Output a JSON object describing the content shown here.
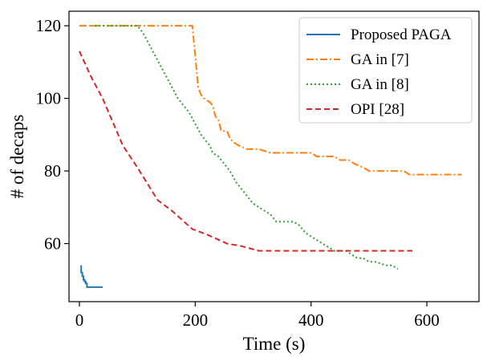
{
  "chart_data": {
    "type": "line",
    "title": "",
    "xlabel": "Time (s)",
    "ylabel": "# of decaps",
    "xlim": [
      -18,
      690
    ],
    "ylim": [
      44,
      124
    ],
    "xticks": [
      0,
      200,
      400,
      600
    ],
    "yticks": [
      60,
      80,
      100,
      120
    ],
    "grid": false,
    "legend_position": "top-right",
    "series": [
      {
        "name": "Proposed PAGA",
        "color": "#1f77b4",
        "style": "solid",
        "x": [
          3,
          3,
          5,
          5,
          7,
          7,
          9,
          9,
          11,
          11,
          13,
          13,
          40
        ],
        "y": [
          54,
          52,
          52,
          51,
          51,
          50,
          50,
          49.5,
          49.5,
          49,
          49,
          48,
          48
        ]
      },
      {
        "name": "GA in [7]",
        "color": "#ff7f0e",
        "style": "dashdot",
        "x": [
          0,
          195,
          200,
          205,
          210,
          215,
          225,
          230,
          235,
          240,
          245,
          255,
          260,
          265,
          275,
          290,
          310,
          330,
          345,
          400,
          410,
          440,
          450,
          460,
          465,
          475,
          490,
          500,
          530,
          560,
          565,
          570,
          580,
          660
        ],
        "y": [
          120,
          120,
          112,
          103,
          101,
          100,
          99,
          98,
          95,
          94,
          91,
          91,
          89,
          88,
          87,
          86,
          86,
          85,
          85,
          85,
          84,
          84,
          83,
          83,
          83,
          82,
          81,
          80,
          80,
          80,
          79.5,
          79,
          79,
          79
        ],
        "step": false
      },
      {
        "name": "GA in [8]",
        "color": "#2ca02c",
        "style": "dotted",
        "x": [
          20,
          60,
          100,
          110,
          120,
          130,
          140,
          150,
          160,
          170,
          180,
          190,
          200,
          210,
          220,
          225,
          230,
          240,
          250,
          260,
          270,
          280,
          290,
          300,
          310,
          320,
          330,
          340,
          350,
          360,
          370,
          380,
          390,
          400,
          410,
          420,
          430,
          440,
          460,
          470,
          480,
          490,
          500,
          510,
          530,
          540,
          550
        ],
        "y": [
          120,
          120,
          120,
          118,
          115,
          112,
          109,
          106,
          103,
          100,
          98,
          96,
          93,
          90,
          88,
          87,
          85,
          84,
          82,
          80,
          77,
          75,
          73,
          71,
          70,
          69,
          68,
          66,
          66,
          66,
          66,
          65,
          63,
          62,
          61,
          60,
          59,
          58,
          58,
          57,
          56,
          56,
          55,
          55,
          54,
          54,
          53
        ]
      },
      {
        "name": "OPI [28]",
        "color": "#d62728",
        "style": "dashed",
        "x": [
          0,
          20,
          40,
          75,
          100,
          135,
          160,
          195,
          220,
          255,
          280,
          310,
          340,
          400,
          450,
          500,
          575
        ],
        "y": [
          113,
          106,
          100,
          87,
          81,
          72,
          69,
          64,
          62.5,
          60,
          59.3,
          58,
          58,
          58,
          58,
          58,
          58
        ]
      }
    ]
  }
}
